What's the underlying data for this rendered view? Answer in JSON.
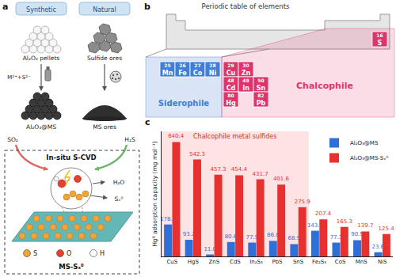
{
  "figure": {
    "a": {
      "panel_label": "a",
      "synthetic": "Synthetic",
      "natural": "Natural",
      "synthetic_material": "Al₂O₃ pellets",
      "natural_material": "Sulfide ores",
      "synthetic_step": "M²⁺+S²⁻",
      "synthetic_product": "Al₂O₃@MS",
      "natural_product": "MS ores",
      "left_gas": "SO₂",
      "right_gas": "H₂S",
      "process": "In-situ S-CVD",
      "products": [
        "H₂O",
        "Sₓ⁰"
      ],
      "atoms": [
        {
          "symbol": "S",
          "color": "#f2a43a"
        },
        {
          "symbol": "O",
          "color": "#e8402f"
        },
        {
          "symbol": "H",
          "color": "#ffffff"
        }
      ],
      "surface": "MS-Sₓ⁰"
    },
    "b": {
      "panel_label": "b",
      "title": "Periodic table of elements",
      "regions": [
        {
          "name": "Siderophile",
          "color": "#3f7fd6"
        },
        {
          "name": "Chalcophile",
          "color": "#e0336c"
        }
      ],
      "grid": [
        [
          {
            "number": 25,
            "symbol": "Mn",
            "class": "Siderophile"
          },
          {
            "number": 26,
            "symbol": "Fe",
            "class": "Siderophile"
          },
          {
            "number": 27,
            "symbol": "Co",
            "class": "Siderophile"
          },
          {
            "number": 28,
            "symbol": "Ni",
            "class": "Siderophile"
          },
          {
            "number": 29,
            "symbol": "Cu",
            "class": "Chalcophile"
          },
          {
            "number": 30,
            "symbol": "Zn",
            "class": "Chalcophile"
          },
          null
        ],
        [
          null,
          null,
          null,
          null,
          {
            "number": 48,
            "symbol": "Cd",
            "class": "Chalcophile"
          },
          {
            "number": 49,
            "symbol": "In",
            "class": "Chalcophile"
          },
          {
            "number": 50,
            "symbol": "Sn",
            "class": "Chalcophile"
          }
        ],
        [
          null,
          null,
          null,
          null,
          {
            "number": 80,
            "symbol": "Hg",
            "class": "Chalcophile"
          },
          null,
          {
            "number": 82,
            "symbol": "Pb",
            "class": "Chalcophile"
          }
        ]
      ],
      "nonmetal": {
        "number": 16,
        "symbol": "S",
        "class": "Chalcophile"
      }
    }
  },
  "chart_data": {
    "type": "bar",
    "panel_label": "c",
    "categories": [
      "CuS",
      "HgS",
      "ZnS",
      "CdS",
      "In₂S₃",
      "PbS",
      "SnS",
      "Fe₂S₃",
      "CoS",
      "MnS",
      "NiS"
    ],
    "series": [
      {
        "name": "Al₂O₃@MS",
        "color": "#2f6fd8",
        "values": [
          178.9,
          93.2,
          11.0,
          80.6,
          77.5,
          86.8,
          68.9,
          143.8,
          77.3,
          90.9,
          23.6
        ],
        "value_labels": [
          "178.9",
          "93.2",
          "11.0",
          "80.6",
          "77.5",
          "86.8",
          "68.9",
          "143.8",
          "77.3",
          "90.9",
          "23.6"
        ]
      },
      {
        "name": "Al₂O₃@MS-Sₓ⁰",
        "color": "#e8312f",
        "values": [
          640.4,
          542.3,
          457.3,
          454.4,
          431.7,
          401.6,
          275.9,
          207.4,
          165.3,
          139.7,
          125.4
        ],
        "value_labels": [
          "640.4",
          "542.3",
          "457.3",
          "454.4",
          "431.7",
          "401.6",
          "275.9",
          "207.4",
          "165.3",
          "139.7",
          "125.4"
        ]
      }
    ],
    "y_label": "Hg⁰ adsorption capacity (mg mol⁻¹)",
    "ylim": [
      0,
      700
    ],
    "tick_labels": "x",
    "grid": false,
    "data_labels": true,
    "legend": "top-right",
    "annotations": [
      {
        "text": "Chalcophile metal sulfides",
        "categories": [
          "CuS",
          "SnS"
        ]
      }
    ]
  }
}
